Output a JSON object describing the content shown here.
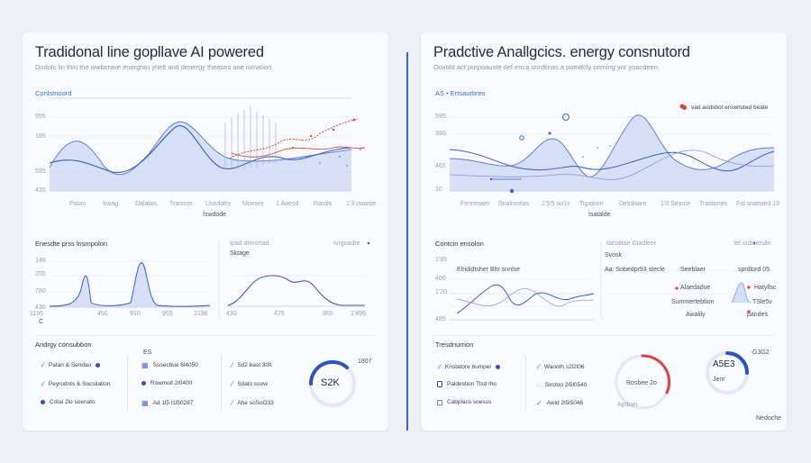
{
  "left": {
    "title": "Tradidonal line gopllave AI powered",
    "subtitle": "Dodolc lin thin the wwbcrave energran yhelt and denergy theeses ane iumation",
    "main_tag": "Conlstnoord",
    "y_ticks": [
      "995",
      "185",
      "595",
      "435"
    ],
    "x_ticks": [
      "Patan",
      "Irwag",
      "Dalatas",
      "Trastore",
      "Usedatry",
      "Moeore",
      "1 Aaesd",
      "Rardis",
      "1'3 owaste"
    ],
    "x_caption": "Iswdode",
    "sub_left_title": "Enesdte prss lnsmpolon",
    "sub_left_yticks": [
      "148",
      "255",
      "780",
      "430"
    ],
    "sub_left_xticks": [
      "1195",
      "450",
      "910",
      "955",
      "2196"
    ],
    "sub_left_marker": "C",
    "sub_right_tag": "Ipad drmortad",
    "sub_right_tag2": "Ivrgoadre",
    "sub_right_label": "Sktage",
    "sub_right_xticks": [
      "430",
      "475",
      "965",
      "1'495"
    ],
    "bottom_title": "Andrgy consubbon",
    "bottom_col2_hdr": "ES",
    "items_col1": [
      "Patan & Sendao",
      "Peyrodnts & Socsilation",
      "Cotal 2lo soenato"
    ],
    "items_col2": [
      "Ssoecbue 6l4050",
      "Rswmoit 2l0400",
      "Ad 1l5 l1l50287"
    ],
    "items_col3": [
      "Sd2 bast 3l3t",
      "Sdalo soow",
      "Ahe soSoO33"
    ],
    "gauge_value": "S2K",
    "gauge_label": "1807"
  },
  "right": {
    "title": "Pradctive Anallgcics. energy consnutord",
    "subtitle": "Ooxold act purpoauste def enca snrdtinas a poeafcly cerning yor yoacdeen.",
    "main_tag": "AS • Ertsaurbres",
    "legend": "vad aodsbot erswrluted beate",
    "y_ticks": [
      "595",
      "390",
      "465",
      "10"
    ],
    "x_ticks": [
      "Fenrenaer",
      "Soalnselas",
      "1'5'5 ao1s",
      "Tigajoon",
      "Detoloare",
      "1'0 Seante",
      "Trastones",
      "Fid snatsted 19"
    ],
    "x_caption": "Isatalde",
    "sub_left_title": "Contcin ensolon",
    "sub_left_yticks": [
      "1'85",
      "400",
      "1'20",
      "485"
    ],
    "sub_left_note": "Elrididtsher Bhr snnlse",
    "sub_right_tag": "Iacotitae Gladfeer",
    "sub_right_tag2": "Iet oubcerslin",
    "sub_right_rows": [
      {
        "a": "Svosk",
        "b": ""
      },
      {
        "a": "Aa: Sobedpr93 stecle",
        "b": "Seeblaer",
        "c": "sprdlord 05"
      },
      {
        "a": "Alaedadve",
        "b": "Hatyllsc"
      },
      {
        "a": "Summertebtion",
        "b": "TSle5v"
      },
      {
        "a": "Awalily",
        "b": "pandes"
      }
    ],
    "bottom_title": "Tresdnurrion",
    "items_col1": [
      "Kristatore bumpel",
      "Paldestion Tlsd lho",
      "Cabplacs soesss"
    ],
    "items_col2": [
      "Waooth s2l2l06",
      "Sirctoo 2l5l0540",
      "Awid 2l5l5046"
    ],
    "gauge1_a": "Rosbee 2o",
    "gauge1_b": "Aptban",
    "gauge2_value": "A5E3",
    "gauge2_sub": "Jenr",
    "gauge2_label": "G3G2",
    "footer": "Nedoche"
  }
}
